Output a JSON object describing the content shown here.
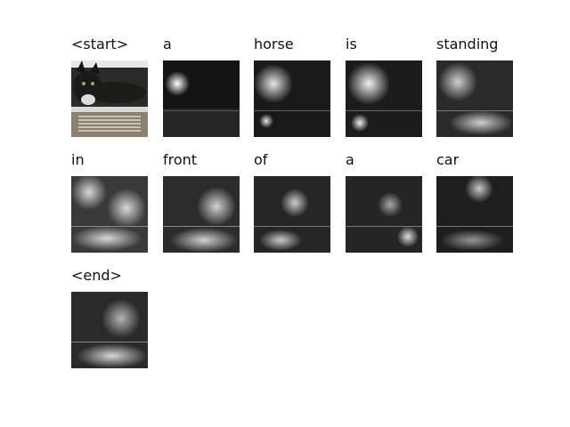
{
  "figure": {
    "captions": [
      "<start>",
      "a",
      "horse",
      "is",
      "standing",
      "in",
      "front",
      "of",
      "a",
      "car",
      "<end>"
    ]
  },
  "images": [
    {
      "kind": "original",
      "icon": "cat-photo"
    },
    {
      "kind": "attention",
      "focus": "upper-left spot"
    },
    {
      "kind": "attention",
      "focus": "cat head"
    },
    {
      "kind": "attention",
      "focus": "cat head"
    },
    {
      "kind": "attention",
      "focus": "cat and lower area"
    },
    {
      "kind": "attention",
      "focus": "diffuse"
    },
    {
      "kind": "attention",
      "focus": "lower area"
    },
    {
      "kind": "attention",
      "focus": "center"
    },
    {
      "kind": "attention",
      "focus": "lower right"
    },
    {
      "kind": "attention",
      "focus": "upper right"
    },
    {
      "kind": "attention",
      "focus": "lower area"
    }
  ]
}
